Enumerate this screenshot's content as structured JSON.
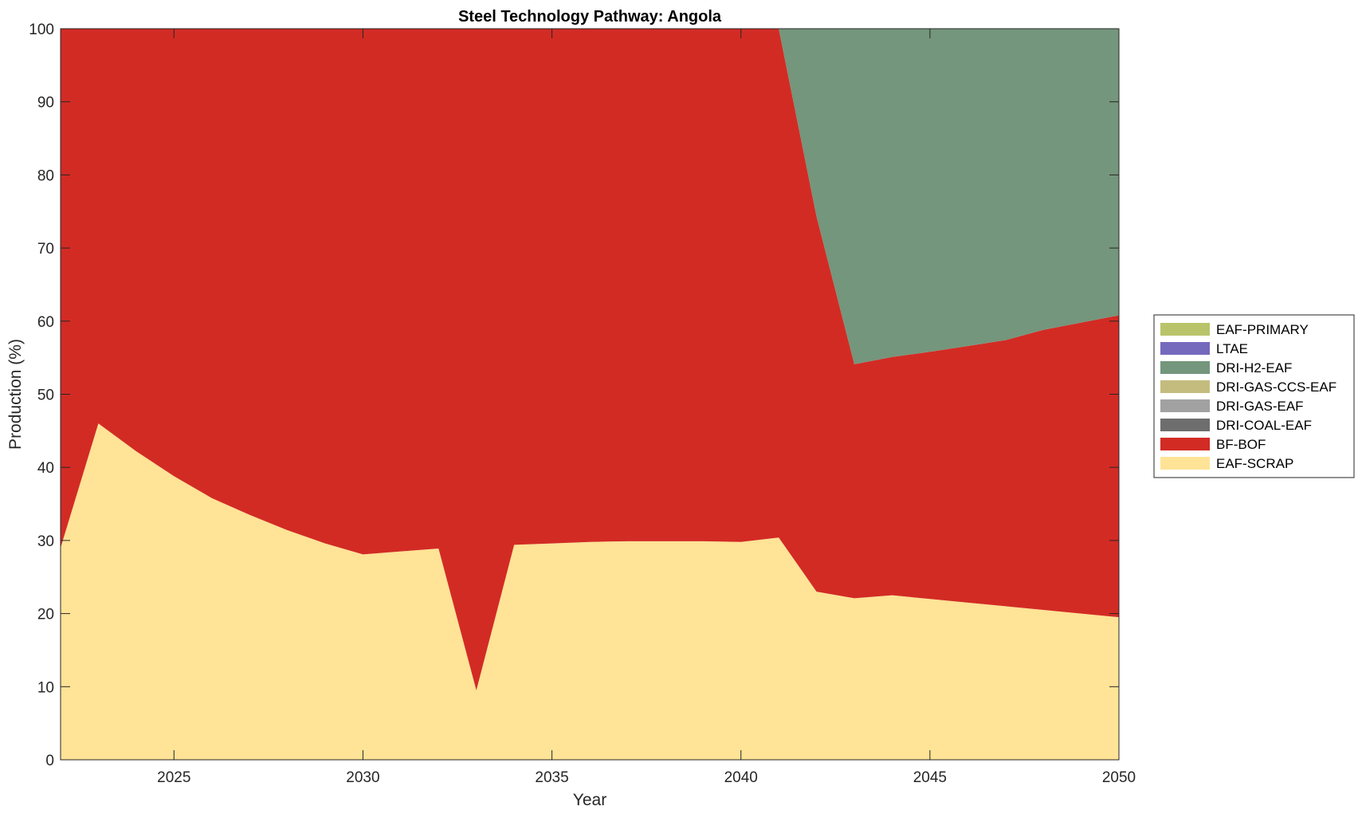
{
  "chart_data": {
    "type": "area",
    "title": "Steel Technology Pathway: Angola",
    "xlabel": "Year",
    "ylabel": "Production (%)",
    "xlim": [
      2022,
      2050
    ],
    "ylim": [
      0,
      100
    ],
    "xticks": [
      2025,
      2030,
      2035,
      2040,
      2045,
      2050
    ],
    "yticks": [
      0,
      10,
      20,
      30,
      40,
      50,
      60,
      70,
      80,
      90,
      100
    ],
    "grid": false,
    "legend_position": "right",
    "x": [
      2022,
      2023,
      2024,
      2025,
      2026,
      2027,
      2028,
      2029,
      2030,
      2031,
      2032,
      2033,
      2034,
      2035,
      2036,
      2037,
      2038,
      2039,
      2040,
      2041,
      2042,
      2043,
      2044,
      2045,
      2046,
      2047,
      2048,
      2049,
      2050
    ],
    "series": [
      {
        "name": "EAF-SCRAP",
        "color": "#FFE396",
        "values": [
          29,
          46,
          42.2,
          38.8,
          35.8,
          33.5,
          31.4,
          29.6,
          28.1,
          28.5,
          28.9,
          9.5,
          29.4,
          29.6,
          29.8,
          29.9,
          29.9,
          29.9,
          29.8,
          30.4,
          23.0,
          22.1,
          22.5,
          22.0,
          21.5,
          21.0,
          20.5,
          20.0,
          19.5
        ]
      },
      {
        "name": "BF-BOF",
        "color": "#D22B24",
        "values": [
          71,
          54,
          57.8,
          61.2,
          64.2,
          66.5,
          68.6,
          70.4,
          71.9,
          71.5,
          71.1,
          90.5,
          70.6,
          70.4,
          70.2,
          70.1,
          70.1,
          70.1,
          70.2,
          69.6,
          51.3,
          32.0,
          32.6,
          33.8,
          35.1,
          36.4,
          38.3,
          39.8,
          41.3
        ]
      },
      {
        "name": "DRI-COAL-EAF",
        "color": "#6E6E6E",
        "values": [
          0,
          0,
          0,
          0,
          0,
          0,
          0,
          0,
          0,
          0,
          0,
          0,
          0,
          0,
          0,
          0,
          0,
          0,
          0,
          0,
          0,
          0,
          0,
          0,
          0,
          0,
          0,
          0,
          0
        ]
      },
      {
        "name": "DRI-GAS-EAF",
        "color": "#A1A1A1",
        "values": [
          0,
          0,
          0,
          0,
          0,
          0,
          0,
          0,
          0,
          0,
          0,
          0,
          0,
          0,
          0,
          0,
          0,
          0,
          0,
          0,
          0,
          0,
          0,
          0,
          0,
          0,
          0,
          0,
          0
        ]
      },
      {
        "name": "DRI-GAS-CCS-EAF",
        "color": "#C4BC7E",
        "values": [
          0,
          0,
          0,
          0,
          0,
          0,
          0,
          0,
          0,
          0,
          0,
          0,
          0,
          0,
          0,
          0,
          0,
          0,
          0,
          0,
          0,
          0,
          0,
          0,
          0,
          0,
          0,
          0,
          0
        ]
      },
      {
        "name": "DRI-H2-EAF",
        "color": "#74967C",
        "values": [
          0,
          0,
          0,
          0,
          0,
          0,
          0,
          0,
          0,
          0,
          0,
          0,
          0,
          0,
          0,
          0,
          0,
          0,
          0,
          0,
          25.7,
          45.9,
          44.9,
          44.2,
          43.4,
          42.6,
          41.2,
          40.2,
          39.2
        ]
      },
      {
        "name": "LTAE",
        "color": "#7569BE",
        "values": [
          0,
          0,
          0,
          0,
          0,
          0,
          0,
          0,
          0,
          0,
          0,
          0,
          0,
          0,
          0,
          0,
          0,
          0,
          0,
          0,
          0,
          0,
          0,
          0,
          0,
          0,
          0,
          0,
          0
        ]
      },
      {
        "name": "EAF-PRIMARY",
        "color": "#B9C46A",
        "values": [
          0,
          0,
          0,
          0,
          0,
          0,
          0,
          0,
          0,
          0,
          0,
          0,
          0,
          0,
          0,
          0,
          0,
          0,
          0,
          0,
          0,
          0,
          0,
          0,
          0,
          0,
          0,
          0,
          0
        ]
      }
    ],
    "legend_order": [
      "EAF-PRIMARY",
      "LTAE",
      "DRI-H2-EAF",
      "DRI-GAS-CCS-EAF",
      "DRI-GAS-EAF",
      "DRI-COAL-EAF",
      "BF-BOF",
      "EAF-SCRAP"
    ]
  }
}
